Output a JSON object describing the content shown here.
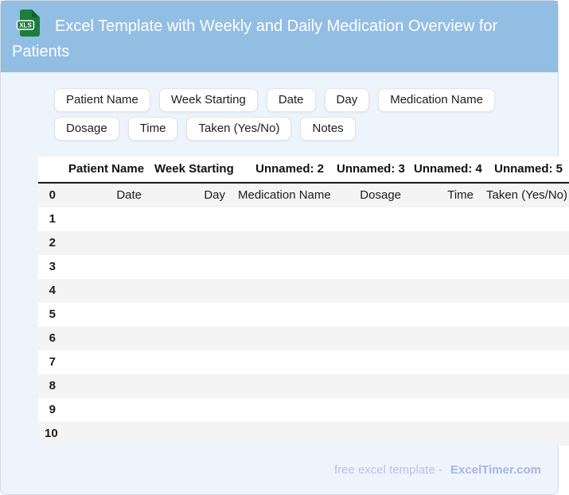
{
  "header": {
    "title": "Excel Template with Weekly and Daily Medication Overview for Patients",
    "icon_label": "XLS"
  },
  "chips": [
    "Patient Name",
    "Week Starting",
    "Date",
    "Day",
    "Medication Name",
    "Dosage",
    "Time",
    "Taken (Yes/No)",
    "Notes"
  ],
  "table": {
    "columns": [
      "",
      "Patient Name",
      "Week Starting",
      "Unnamed: 2",
      "Unnamed: 3",
      "Unnamed: 4",
      "Unnamed: 5"
    ],
    "rows": [
      [
        "0",
        "Date",
        "Day",
        "Medication Name",
        "Dosage",
        "Time",
        "Taken (Yes/No)"
      ],
      [
        "1",
        "",
        "",
        "",
        "",
        "",
        ""
      ],
      [
        "2",
        "",
        "",
        "",
        "",
        "",
        ""
      ],
      [
        "3",
        "",
        "",
        "",
        "",
        "",
        ""
      ],
      [
        "4",
        "",
        "",
        "",
        "",
        "",
        ""
      ],
      [
        "5",
        "",
        "",
        "",
        "",
        "",
        ""
      ],
      [
        "6",
        "",
        "",
        "",
        "",
        "",
        ""
      ],
      [
        "7",
        "",
        "",
        "",
        "",
        "",
        ""
      ],
      [
        "8",
        "",
        "",
        "",
        "",
        "",
        ""
      ],
      [
        "9",
        "",
        "",
        "",
        "",
        "",
        ""
      ],
      [
        "10",
        "",
        "",
        "",
        "",
        "",
        ""
      ]
    ]
  },
  "footer": {
    "prefix": "free excel template -",
    "brand": "ExcelTimer.com"
  },
  "colors": {
    "header_bg": "#92bee4",
    "body_bg": "#eef4fb",
    "stripe": "#f4f4f4",
    "icon_green": "#1b7e3c",
    "footer_text": "#b7c2ea",
    "footer_brand": "#a8b4e6"
  }
}
